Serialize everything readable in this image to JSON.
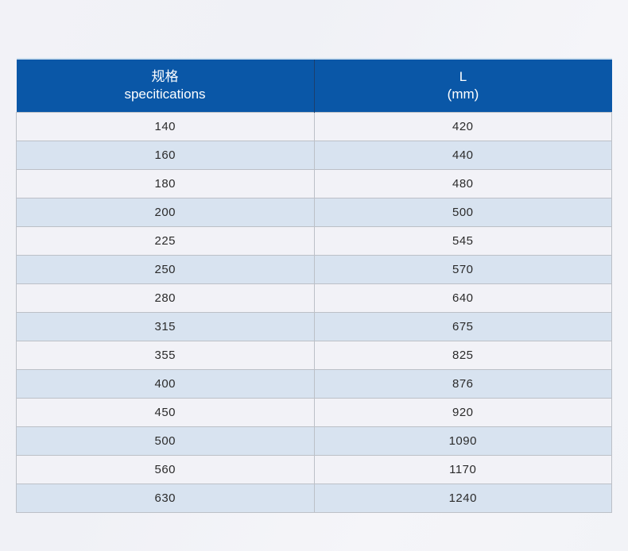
{
  "table": {
    "header": {
      "col1_line1": "规格",
      "col1_line2": "specitications",
      "col2_line1": "L",
      "col2_line2": "(mm)"
    },
    "rows": [
      {
        "spec": "140",
        "l": "420"
      },
      {
        "spec": "160",
        "l": "440"
      },
      {
        "spec": "180",
        "l": "480"
      },
      {
        "spec": "200",
        "l": "500"
      },
      {
        "spec": "225",
        "l": "545"
      },
      {
        "spec": "250",
        "l": "570"
      },
      {
        "spec": "280",
        "l": "640"
      },
      {
        "spec": "315",
        "l": "675"
      },
      {
        "spec": "355",
        "l": "825"
      },
      {
        "spec": "400",
        "l": "876"
      },
      {
        "spec": "450",
        "l": "920"
      },
      {
        "spec": "500",
        "l": "1090"
      },
      {
        "spec": "560",
        "l": "1170"
      },
      {
        "spec": "630",
        "l": "1240"
      }
    ]
  },
  "colors": {
    "header-bg": "#0a57a7",
    "header-text": "#ffffff",
    "header-divider": "#1c3f6e",
    "header-top-edge": "#cfe0ef",
    "row-light": "#f2f2f7",
    "row-blue": "#d8e3f0",
    "grid-line": "#bcc0c7",
    "cell-text": "#2b2b2b"
  },
  "chart_data": {
    "type": "table",
    "title": "",
    "columns": [
      "规格 specitications",
      "L (mm)"
    ],
    "rows": [
      [
        140,
        420
      ],
      [
        160,
        440
      ],
      [
        180,
        480
      ],
      [
        200,
        500
      ],
      [
        225,
        545
      ],
      [
        250,
        570
      ],
      [
        280,
        640
      ],
      [
        315,
        675
      ],
      [
        355,
        825
      ],
      [
        400,
        876
      ],
      [
        450,
        920
      ],
      [
        500,
        1090
      ],
      [
        560,
        1170
      ],
      [
        630,
        1240
      ]
    ],
    "layout": {
      "header_background": "#0a57a7",
      "alternating_rows": true,
      "grid": true
    }
  }
}
